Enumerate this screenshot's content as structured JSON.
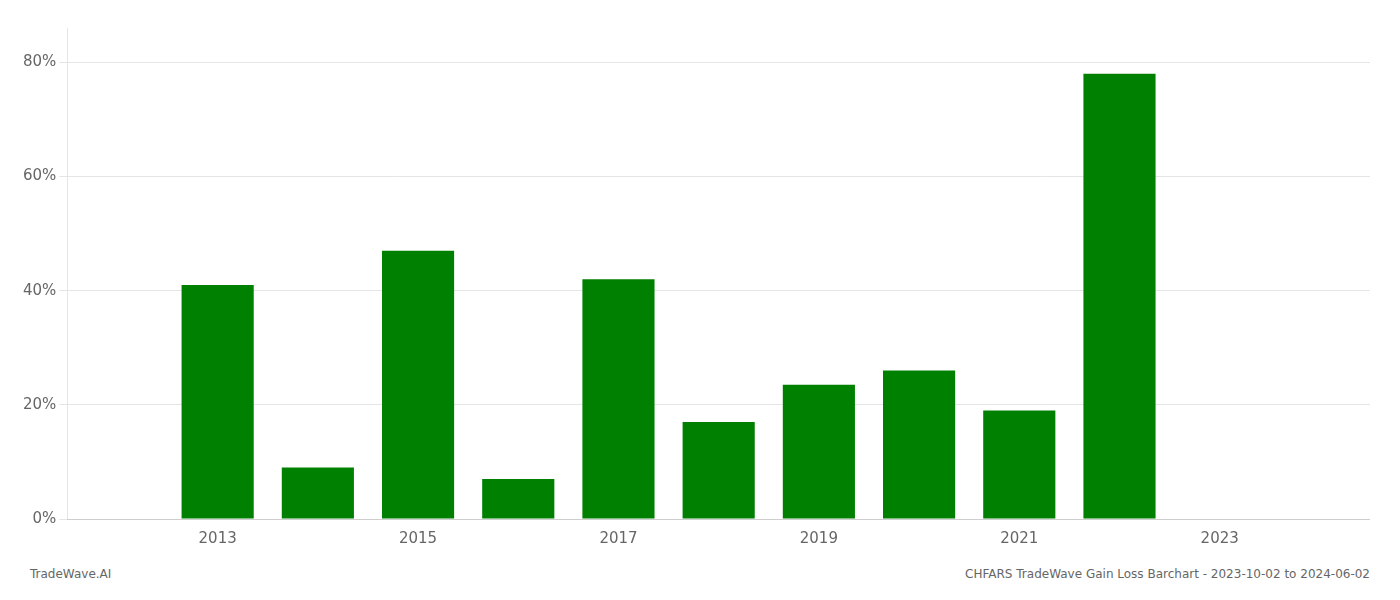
{
  "chart_data": {
    "type": "bar",
    "x": [
      2013,
      2014,
      2015,
      2016,
      2017,
      2018,
      2019,
      2020,
      2021,
      2022
    ],
    "values": [
      0.41,
      0.09,
      0.47,
      0.07,
      0.42,
      0.17,
      0.235,
      0.26,
      0.19,
      0.78
    ],
    "color": "#008000",
    "xlim": [
      2011.5,
      2024.5
    ],
    "xticks": [
      2013,
      2015,
      2017,
      2019,
      2021,
      2023
    ],
    "ylim": [
      0,
      0.86
    ],
    "yticks": [
      {
        "value": 0.0,
        "label": "0%"
      },
      {
        "value": 0.2,
        "label": "20%"
      },
      {
        "value": 0.4,
        "label": "40%"
      },
      {
        "value": 0.6,
        "label": "60%"
      },
      {
        "value": 0.8,
        "label": "80%"
      }
    ],
    "grid": "y",
    "annotations": [
      "TradeWave.AI",
      "CHFARS TradeWave Gain Loss Barchart - 2023-10-02 to 2024-06-02"
    ]
  }
}
